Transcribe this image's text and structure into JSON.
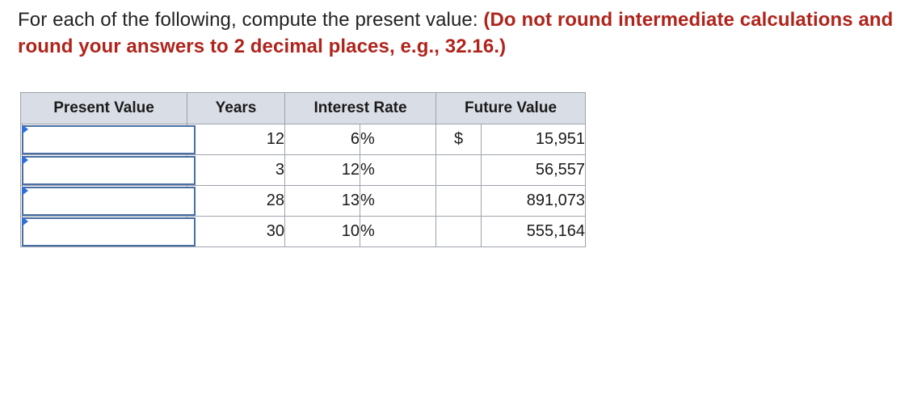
{
  "instructions": {
    "lead": "For each of the following, compute the present value: ",
    "emphasis": "(Do not round intermediate calculations and round your answers to 2 decimal places, e.g., 32.16.)"
  },
  "table": {
    "headers": {
      "present_value": "Present Value",
      "years": "Years",
      "interest_rate": "Interest Rate",
      "future_value": "Future Value"
    },
    "rows": [
      {
        "present_value": "",
        "years": "12",
        "rate": "6",
        "rate_unit": "%",
        "fv_symbol": "$",
        "future_value": "15,951"
      },
      {
        "present_value": "",
        "years": "3",
        "rate": "12",
        "rate_unit": "%",
        "fv_symbol": "",
        "future_value": "56,557"
      },
      {
        "present_value": "",
        "years": "28",
        "rate": "13",
        "rate_unit": "%",
        "fv_symbol": "",
        "future_value": "891,073"
      },
      {
        "present_value": "",
        "years": "30",
        "rate": "10",
        "rate_unit": "%",
        "fv_symbol": "",
        "future_value": "555,164"
      }
    ]
  },
  "colors": {
    "emphasis": "#b0241c",
    "header_bg": "#d9dde5",
    "input_border": "#4a6fa5",
    "flag": "#2f6fd6"
  }
}
